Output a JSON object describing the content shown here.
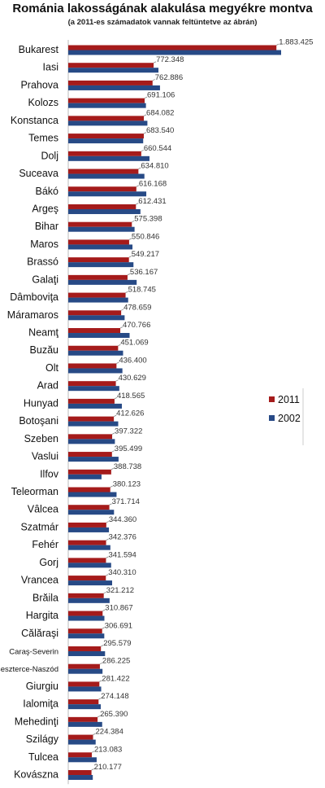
{
  "chart_data": {
    "type": "bar",
    "orientation": "horizontal",
    "title": "Románia lakosságának alakulása megyékre montva",
    "subtitle": "(a 2011-es számadatok vannak feltüntetve az ábrán)",
    "legend_position": "right",
    "colors": {
      "2011": "#a51b1b",
      "2002": "#274a86"
    },
    "series": [
      {
        "name": "2011",
        "values": [
          1883425,
          772348,
          762886,
          691106,
          684082,
          683540,
          660544,
          634810,
          616168,
          612431,
          575398,
          550846,
          549217,
          536167,
          518745,
          478659,
          470766,
          451069,
          436400,
          430629,
          418565,
          412626,
          397322,
          395499,
          388738,
          380123,
          371714,
          344360,
          342376,
          341594,
          340310,
          321212,
          310867,
          306691,
          295579,
          286225,
          281422,
          274148,
          265390,
          224384,
          213083,
          210177
        ],
        "value_labels": [
          "1.883.425",
          "772.348",
          "762.886",
          "691.106",
          "684.082",
          "683.540",
          "660.544",
          "634.810",
          "616.168",
          "612.431",
          "575.398",
          "550.846",
          "549.217",
          "536.167",
          "518.745",
          "478.659",
          "470.766",
          "451.069",
          "436.400",
          "430.629",
          "418.565",
          "412.626",
          "397.322",
          "395.499",
          "388.738",
          "380.123",
          "371.714",
          "344.360",
          "342.376",
          "341.594",
          "340.310",
          "321.212",
          "310.867",
          "306.691",
          "295.579",
          "286.225",
          "281.422",
          "274.148",
          "265.390",
          "224.384",
          "213.083",
          "210.177"
        ]
      },
      {
        "name": "2002",
        "values": [
          1926000,
          816000,
          830000,
          703000,
          716000,
          678000,
          735000,
          689000,
          706000,
          653000,
          600000,
          581000,
          590000,
          619000,
          542000,
          510000,
          555000,
          496000,
          490000,
          462000,
          485000,
          452000,
          422000,
          455000,
          301000,
          437000,
          414000,
          368000,
          381000,
          388000,
          397000,
          374000,
          327000,
          326000,
          333000,
          310000,
          298000,
          294000,
          307000,
          248000,
          257000,
          222000
        ]
      }
    ],
    "categories": [
      "Bukarest",
      "Iasi",
      "Prahova",
      "Kolozs",
      "Konstanca",
      "Temes",
      "Dolj",
      "Suceava",
      "Bákó",
      "Argeş",
      "Bihar",
      "Maros",
      "Brassó",
      "Galaţi",
      "Dâmboviţa",
      "Máramaros",
      "Neamţ",
      "Buzău",
      "Olt",
      "Arad",
      "Hunyad",
      "Botoşani",
      "Szeben",
      "Vaslui",
      "Ilfov",
      "Teleorman",
      "Vâlcea",
      "Szatmár",
      "Fehér",
      "Gorj",
      "Vrancea",
      "Brăila",
      "Hargita",
      "Călăraşi",
      "Caraş-Severin",
      "Beszterce-Naszód",
      "Giurgiu",
      "Ialomiţa",
      "Mehedinţi",
      "Szilágy",
      "Tulcea",
      "Kovászna"
    ],
    "xlim": [
      0,
      2000000
    ],
    "grid": false
  }
}
